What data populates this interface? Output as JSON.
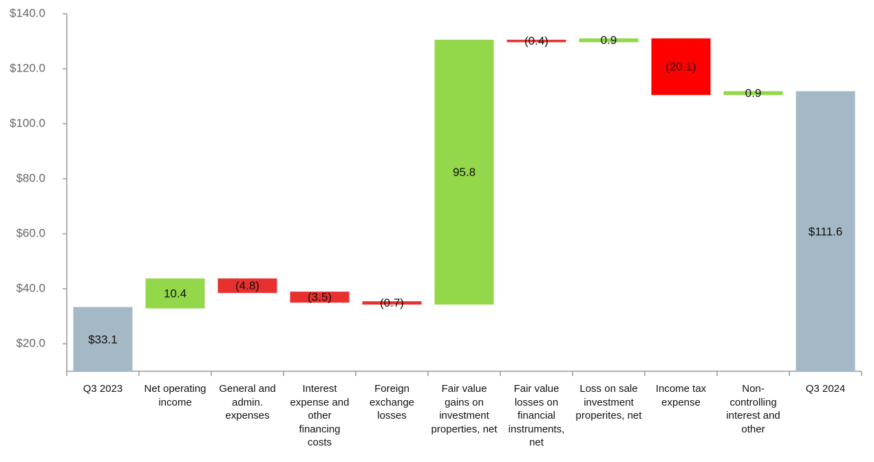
{
  "chart_data": {
    "type": "waterfall",
    "categories": [
      "Q3 2023",
      "Net operating income",
      "General and admin. expenses",
      "Interest expense and other financing costs",
      "Foreign exchange losses",
      "Fair value gains on investment properties, net",
      "Fair value losses on financial instruments, net",
      "Loss on sale investment properites, net",
      "Income tax expense",
      "Non-controlling interest and other",
      "Q3 2024"
    ],
    "values": [
      33.1,
      10.4,
      -4.8,
      -3.5,
      -0.7,
      95.8,
      -0.4,
      0.9,
      -20.1,
      0.9,
      111.6
    ],
    "value_labels": [
      "$33.1",
      "10.4",
      "(4.8)",
      "(3.5)",
      "(0.7)",
      "95.8",
      "(0.4)",
      "0.9",
      "(20.1)",
      "0.9",
      "$111.6"
    ],
    "is_total": [
      true,
      false,
      false,
      false,
      false,
      false,
      false,
      false,
      false,
      false,
      true
    ],
    "colors": [
      "#a5b8c6",
      "#92d84a",
      "#e8312f",
      "#e8312f",
      "#e8312f",
      "#92d84a",
      "#e8312f",
      "#92d84a",
      "#ff0000",
      "#92d84a",
      "#a5b8c6"
    ],
    "ylim": [
      10,
      140
    ],
    "yticks": [
      {
        "value": 20,
        "label": "$20.0"
      },
      {
        "value": 40,
        "label": "$40.0"
      },
      {
        "value": 60,
        "label": "$60.0"
      },
      {
        "value": 80,
        "label": "$80.0"
      },
      {
        "value": 100,
        "label": "$100.0"
      },
      {
        "value": 120,
        "label": "$120.0"
      },
      {
        "value": 140,
        "label": "$140.0"
      }
    ],
    "grid": false
  }
}
